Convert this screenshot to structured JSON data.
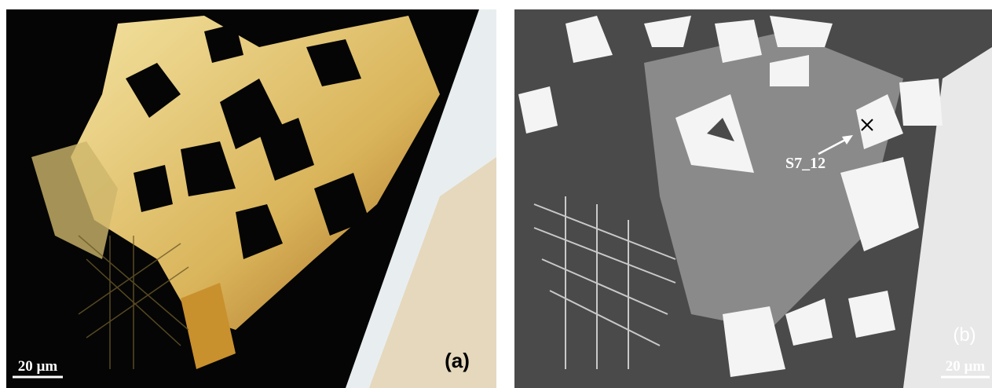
{
  "panels": [
    {
      "label": "(a)",
      "scale_bar": "20 µm"
    },
    {
      "label": "(b)",
      "scale_bar": "20 µm",
      "annotation": "S7_12"
    }
  ]
}
